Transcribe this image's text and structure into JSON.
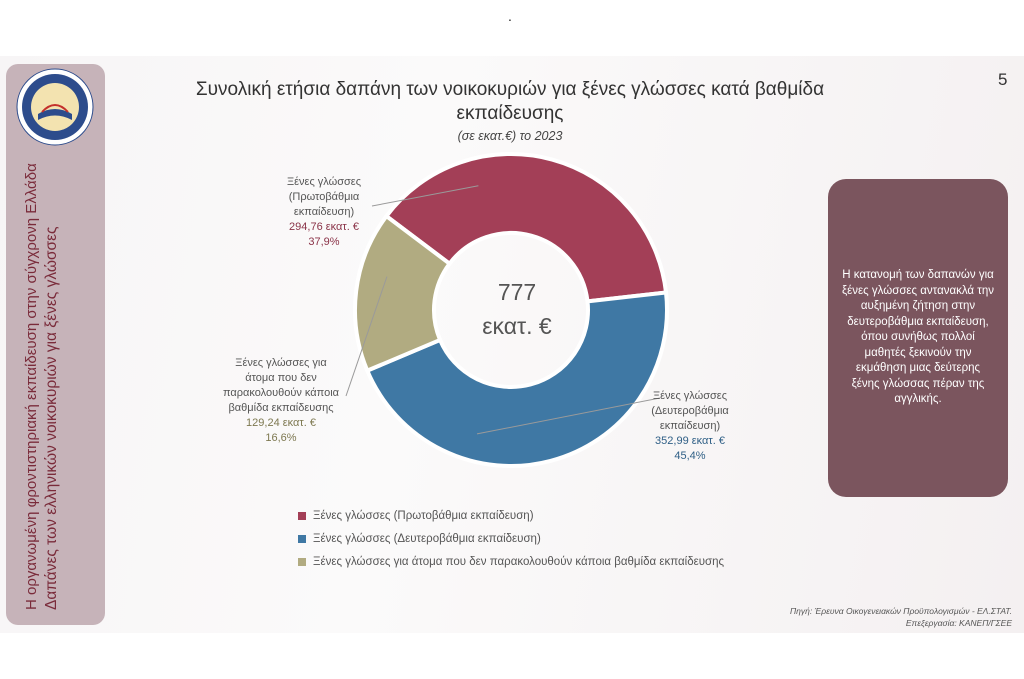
{
  "page_number": "5",
  "top_mark": ".",
  "sidebar": {
    "line1": "Η οργανωμένη φροντιστηριακή εκπαίδευση στην σύγχρονη Ελλάδα",
    "line2": "Δαπάνες των ελληνικών νοικοκυριών για ξένες γλώσσες",
    "logo_text": "ΚΑΝΕΠ ΓΣΕΕ"
  },
  "note": "Η κατανομή των δαπανών για ξένες γλώσσες αντανακλά την αυξημένη ζήτηση στην δευτεροβάθμια εκπαίδευση, όπου συνήθως πολλοί μαθητές ξεκινούν την εκμάθηση μιας δεύτερης ξένης γλώσσας πέραν της αγγλικής.",
  "source": {
    "line1": "Πηγή: Έρευνα Οικογενειακών Προϋπολογισμών - ΕΛ.ΣΤΑΤ.",
    "line2": "Επεξεργασία: ΚΑΝΕΠ/ΓΣΕΕ"
  },
  "chart_data": {
    "type": "pie",
    "title": "Συνολική ετήσια δαπάνη των νοικοκυριών για ξένες γλώσσες κατά βαθμίδα εκπαίδευσης",
    "subtitle": "(σε εκατ.€) το 2023",
    "center_total": "777",
    "center_unit": "εκατ. €",
    "legend_position": "bottom",
    "slices": [
      {
        "name": "Ξένες γλώσσες (Πρωτοβάθμια εκπαίδευση)",
        "label_lines": [
          "Ξένες γλώσσες",
          "(Πρωτοβάθμια",
          "εκπαίδευση)"
        ],
        "value": 294.76,
        "value_label": "294,76 εκατ. €",
        "percent_label": "37,9%",
        "color": "#a33f57"
      },
      {
        "name": "Ξένες γλώσσες (Δευτεροβάθμια εκπαίδευση)",
        "label_lines": [
          "Ξένες γλώσσες",
          "(Δευτεροβάθμια",
          "εκπαίδευση)"
        ],
        "value": 352.99,
        "value_label": "352,99 εκατ. €",
        "percent_label": "45,4%",
        "color": "#3f78a4"
      },
      {
        "name": "Ξένες γλώσσες για άτομα που δεν παρακολουθούν κάποια βαθμίδα εκπαίδευσης",
        "label_lines": [
          "Ξένες γλώσσες για",
          "άτομα που δεν",
          "παρακολουθούν κάποια",
          "βαθμίδα εκπαίδευσης"
        ],
        "value": 129.24,
        "value_label": "129,24 εκατ. €",
        "percent_label": "16,6%",
        "color": "#b1ab81"
      }
    ]
  }
}
